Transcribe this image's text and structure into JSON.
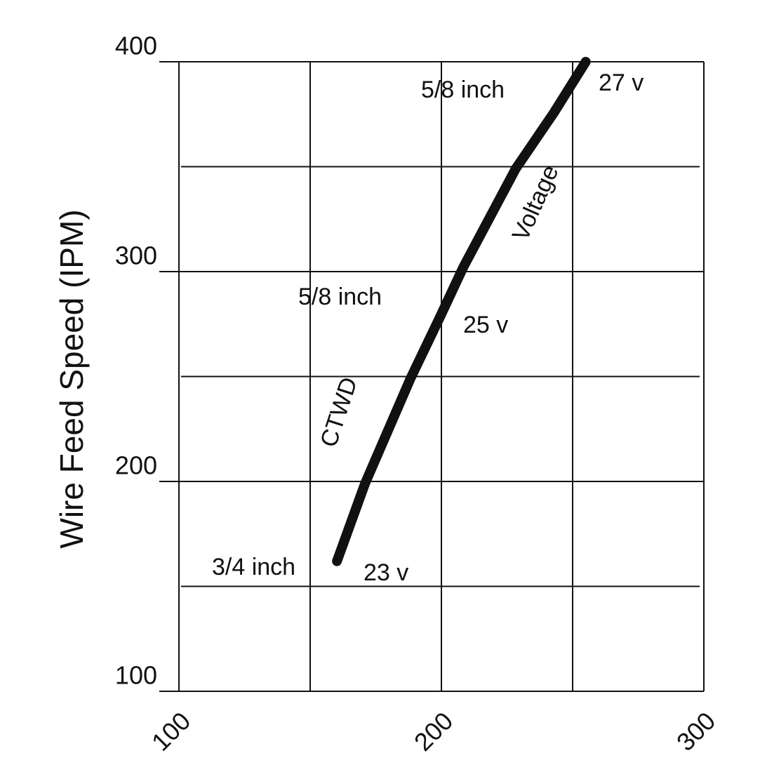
{
  "chart_data": {
    "type": "line",
    "y_label": "Wire Feed Speed (IPM)",
    "xlim": [
      100,
      300
    ],
    "xticks": [
      100,
      200,
      300
    ],
    "xgrid": [
      150,
      250
    ],
    "ylim": [
      100,
      400
    ],
    "yticks": [
      100,
      200,
      300,
      400
    ],
    "ygrid": [
      150,
      250,
      350
    ],
    "grid": true,
    "series": [
      {
        "color": "#111111",
        "x": [
          160.2,
          170.9,
          188.2,
          199.7,
          208.3,
          228.3,
          243,
          255
        ],
        "values": [
          162,
          199,
          249,
          279,
          302,
          349,
          376,
          400
        ]
      }
    ],
    "annotations": [
      "5/8 inch",
      "27 v",
      "Voltage",
      "5/8 inch",
      "25 v",
      "CTWD",
      "3/4 inch",
      "23 v"
    ]
  }
}
